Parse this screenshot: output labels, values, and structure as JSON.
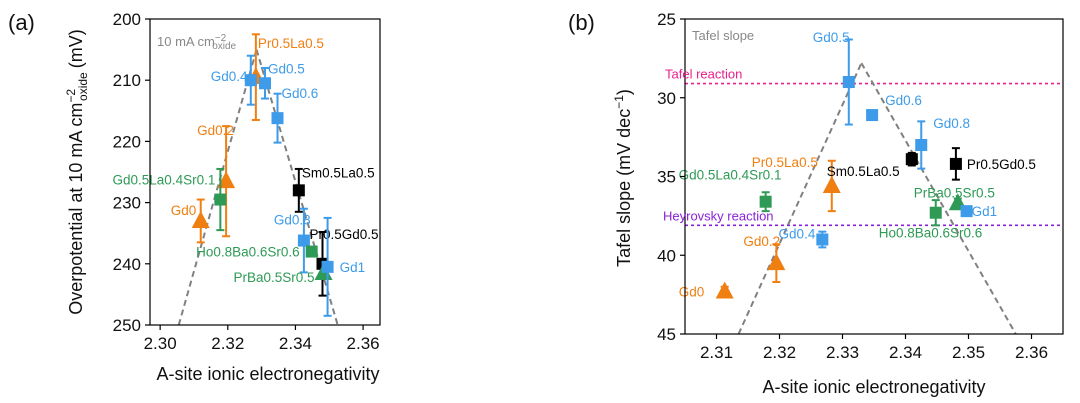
{
  "colors": {
    "orange": "#f07f12",
    "blue": "#3d9be9",
    "green": "#2e9a55",
    "black": "#000000",
    "trend": "#808080",
    "tafel_line": "#e8208c",
    "heyrovsky_line": "#8a22d8"
  },
  "chart_data": [
    {
      "type": "scatter",
      "panel": "(a)",
      "xlabel": "A-site ionic electronegativity",
      "ylabel": "Overpotential at 10 mA cm",
      "ylabel_sup": "−2",
      "ylabel_sub": "oxide",
      "ylabel_unit": "(mV)",
      "annotation": "10 mA cm",
      "annotation_sup": "−2",
      "annotation_sub": "oxide",
      "xlim": [
        2.297,
        2.365
      ],
      "ylim": [
        250,
        200
      ],
      "y_inverted": true,
      "xticks": [
        2.3,
        2.32,
        2.34,
        2.36
      ],
      "xtick_labels": [
        "2.30",
        "2.32",
        "2.34",
        "2.36"
      ],
      "yticks": [
        200,
        210,
        220,
        230,
        240,
        250
      ],
      "ytick_labels": [
        "200",
        "210",
        "220",
        "230",
        "240",
        "250"
      ],
      "trend_lines": [
        {
          "x": [
            2.3055,
            2.3285
          ],
          "y": [
            250,
            205
          ]
        },
        {
          "x": [
            2.3285,
            2.3525
          ],
          "y": [
            205,
            250
          ]
        }
      ],
      "points": [
        {
          "label": "Gd0",
          "x": 2.312,
          "y": 233,
          "err": 3.5,
          "marker": "triangle",
          "color": "orange"
        },
        {
          "label": "Gd0.2",
          "x": 2.3195,
          "y": 226.5,
          "err": 9,
          "marker": "triangle",
          "color": "orange"
        },
        {
          "label": "Gd0.5La0.4Sr0.1",
          "x": 2.3178,
          "y": 229.5,
          "err": 5,
          "marker": "square",
          "color": "green"
        },
        {
          "label": "Pr0.5La0.5",
          "x": 2.3283,
          "y": 209.5,
          "err": 7,
          "marker": "triangle",
          "color": "orange"
        },
        {
          "label": "Gd0.4",
          "x": 2.3268,
          "y": 210,
          "err": 4,
          "marker": "square",
          "color": "blue"
        },
        {
          "label": "Gd0.5",
          "x": 2.331,
          "y": 210.5,
          "err": 2.5,
          "marker": "square",
          "color": "blue"
        },
        {
          "label": "Gd0.6",
          "x": 2.3347,
          "y": 216.2,
          "err": 4,
          "marker": "square",
          "color": "blue"
        },
        {
          "label": "Sm0.5La0.5",
          "x": 2.341,
          "y": 228,
          "err": 3.5,
          "marker": "square",
          "color": "black"
        },
        {
          "label": "Gd0.8",
          "x": 2.3425,
          "y": 236.2,
          "err": 5.2,
          "marker": "square",
          "color": "blue"
        },
        {
          "label": "Ho0.8Ba0.6Sr0.6",
          "x": 2.3448,
          "y": 238,
          "err": 0,
          "marker": "square",
          "color": "green"
        },
        {
          "label": "Pr0.5Gd0.5",
          "x": 2.348,
          "y": 240,
          "err": 5.2,
          "marker": "square",
          "color": "black"
        },
        {
          "label": "PrBa0.5Sr0.5",
          "x": 2.3483,
          "y": 241.5,
          "err": 0,
          "marker": "triangle",
          "color": "green"
        },
        {
          "label": "Gd1",
          "x": 2.3495,
          "y": 240.5,
          "err": 8,
          "marker": "square",
          "color": "blue"
        }
      ]
    },
    {
      "type": "scatter",
      "panel": "(b)",
      "xlabel": "A-site ionic electronegativity",
      "ylabel": "Tafel slope (mV dec",
      "ylabel_sup": "−1",
      "ylabel_tail": ")",
      "annotation": "Tafel slope",
      "xlim": [
        2.305,
        2.365
      ],
      "ylim": [
        45,
        25
      ],
      "y_inverted": true,
      "xticks": [
        2.31,
        2.32,
        2.33,
        2.34,
        2.35,
        2.36
      ],
      "xtick_labels": [
        "2.31",
        "2.32",
        "2.33",
        "2.34",
        "2.35",
        "2.36"
      ],
      "yticks": [
        25,
        30,
        35,
        40,
        45
      ],
      "ytick_labels": [
        "25",
        "30",
        "35",
        "40",
        "45"
      ],
      "reference_lines": [
        {
          "label": "Tafel reaction",
          "y": 29.1,
          "color": "tafel_line"
        },
        {
          "label": "Heyrovsky reaction",
          "y": 38.1,
          "color": "heyrovsky_line"
        }
      ],
      "trend_lines": [
        {
          "x": [
            2.3135,
            2.333
          ],
          "y": [
            45,
            27.8
          ]
        },
        {
          "x": [
            2.333,
            2.3575
          ],
          "y": [
            27.8,
            45
          ]
        }
      ],
      "points": [
        {
          "label": "Gd0",
          "x": 2.3113,
          "y": 42.3,
          "err": 0.3,
          "marker": "triangle",
          "color": "orange"
        },
        {
          "label": "Gd0.2",
          "x": 2.3195,
          "y": 40.5,
          "err": 1.2,
          "marker": "triangle",
          "color": "orange"
        },
        {
          "label": "Gd0.5La0.4Sr0.1",
          "x": 2.3178,
          "y": 36.6,
          "err": 0.6,
          "marker": "square",
          "color": "green"
        },
        {
          "label": "Pr0.5La0.5",
          "x": 2.3283,
          "y": 35.6,
          "err": 1.6,
          "marker": "triangle",
          "color": "orange"
        },
        {
          "label": "Gd0.4",
          "x": 2.3268,
          "y": 39,
          "err": 0.5,
          "marker": "square",
          "color": "blue"
        },
        {
          "label": "Gd0.5",
          "x": 2.331,
          "y": 29,
          "err": 2.7,
          "marker": "square",
          "color": "blue"
        },
        {
          "label": "Gd0.6",
          "x": 2.3347,
          "y": 31.1,
          "err": 0.3,
          "marker": "square",
          "color": "blue"
        },
        {
          "label": "Sm0.5La0.5",
          "x": 2.341,
          "y": 33.9,
          "err": 0.4,
          "marker": "square",
          "color": "black"
        },
        {
          "label": "Gd0.8",
          "x": 2.3425,
          "y": 33,
          "err": 1.5,
          "marker": "square",
          "color": "blue"
        },
        {
          "label": "Ho0.8Ba0.6Sr0.6",
          "x": 2.3448,
          "y": 37.3,
          "err": 0.8,
          "marker": "square",
          "color": "green"
        },
        {
          "label": "Pr0.5Gd0.5",
          "x": 2.348,
          "y": 34.2,
          "err": 1,
          "marker": "square",
          "color": "black"
        },
        {
          "label": "PrBa0.5Sr0.5",
          "x": 2.3483,
          "y": 36.7,
          "err": 0.3,
          "marker": "triangle",
          "color": "green"
        },
        {
          "label": "Gd1",
          "x": 2.3497,
          "y": 37.2,
          "err": 0,
          "marker": "square",
          "color": "blue"
        }
      ]
    }
  ]
}
